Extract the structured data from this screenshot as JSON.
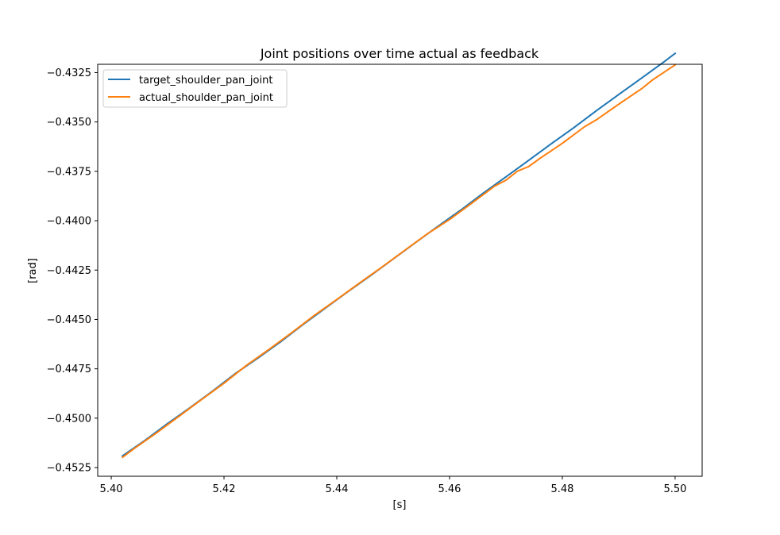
{
  "chart_data": {
    "type": "line",
    "title": "Joint positions over time actual as feedback",
    "xlabel": "[s]",
    "ylabel": "[rad]",
    "xlim": [
      5.3976,
      5.5048
    ],
    "ylim": [
      -0.45294,
      -0.43208
    ],
    "xticks": [
      5.4,
      5.42,
      5.44,
      5.46,
      5.48,
      5.5
    ],
    "xtick_labels": [
      "5.40",
      "5.42",
      "5.44",
      "5.46",
      "5.48",
      "5.50"
    ],
    "yticks": [
      -0.4325,
      -0.435,
      -0.4375,
      -0.44,
      -0.4425,
      -0.445,
      -0.4475,
      -0.45,
      -0.4525
    ],
    "ytick_labels": [
      "−0.4325",
      "−0.4350",
      "−0.4375",
      "−0.4400",
      "−0.4425",
      "−0.4450",
      "−0.4475",
      "−0.4500",
      "−0.4525"
    ],
    "grid": false,
    "legend_position": "top-left",
    "series": [
      {
        "name": "target_shoulder_pan_joint",
        "color": "#1f77b4",
        "x": [
          5.402,
          5.406,
          5.41,
          5.414,
          5.418,
          5.422,
          5.426,
          5.43,
          5.434,
          5.438,
          5.442,
          5.446,
          5.45,
          5.454,
          5.458,
          5.462,
          5.466,
          5.47,
          5.474,
          5.478,
          5.482,
          5.486,
          5.49,
          5.494,
          5.498,
          5.5
        ],
        "y": [
          -0.45191,
          -0.45112,
          -0.45027,
          -0.44946,
          -0.44862,
          -0.44774,
          -0.44696,
          -0.44614,
          -0.44526,
          -0.44442,
          -0.44359,
          -0.44278,
          -0.44194,
          -0.4411,
          -0.44027,
          -0.43946,
          -0.4386,
          -0.43778,
          -0.43695,
          -0.43611,
          -0.4353,
          -0.43444,
          -0.43361,
          -0.43279,
          -0.43196,
          -0.43153
        ]
      },
      {
        "name": "actual_shoulder_pan_joint",
        "color": "#ff7f0e",
        "x": [
          5.402,
          5.404,
          5.408,
          5.412,
          5.416,
          5.42,
          5.424,
          5.428,
          5.432,
          5.436,
          5.44,
          5.444,
          5.448,
          5.452,
          5.456,
          5.46,
          5.464,
          5.468,
          5.47,
          5.472,
          5.474,
          5.476,
          5.48,
          5.484,
          5.486,
          5.49,
          5.494,
          5.496,
          5.5
        ],
        "y": [
          -0.45198,
          -0.45155,
          -0.45075,
          -0.44991,
          -0.44906,
          -0.44823,
          -0.44732,
          -0.44651,
          -0.44567,
          -0.4448,
          -0.44399,
          -0.44316,
          -0.44235,
          -0.44151,
          -0.44068,
          -0.43994,
          -0.4391,
          -0.43825,
          -0.43795,
          -0.4375,
          -0.43726,
          -0.43685,
          -0.43608,
          -0.43523,
          -0.4349,
          -0.4341,
          -0.43333,
          -0.43287,
          -0.43211
        ]
      }
    ]
  }
}
